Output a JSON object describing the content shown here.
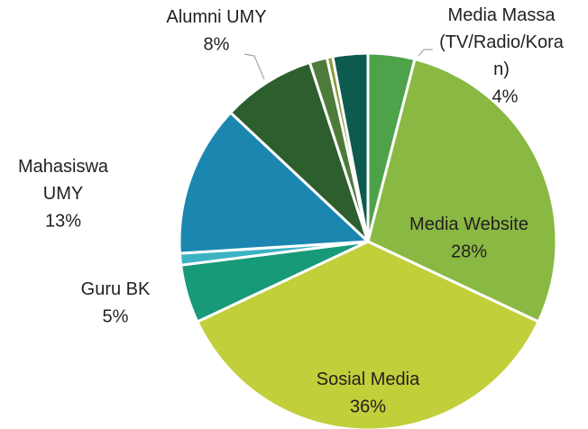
{
  "chart_data": {
    "type": "pie",
    "categories": [
      "Media Massa\n(TV/Radio/Kora\nn)",
      "Media Website",
      "Sosial Media",
      "Guru BK",
      null,
      "Mahasiswa\nUMY",
      "Alumni UMY",
      null,
      null,
      null
    ],
    "values": [
      4,
      28,
      36,
      5,
      1,
      13,
      8,
      1.5,
      0.5,
      3
    ],
    "value_labels": [
      "4%",
      "28%",
      "36%",
      "5%",
      null,
      "13%",
      "8%",
      null,
      null,
      null
    ],
    "colors": [
      "#4ea24a",
      "#8ab943",
      "#c0cf3a",
      "#179a78",
      "#3bb3c3",
      "#1b87b0",
      "#2d5e2e",
      "#4e7a3a",
      "#8a9a3a",
      "#0d5a4e"
    ]
  }
}
